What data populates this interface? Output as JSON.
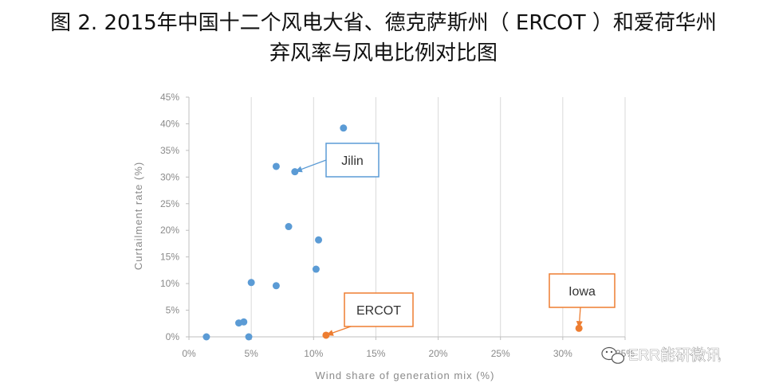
{
  "title": {
    "line1": "图 2. 2015年中国十二个风电大省、德克萨斯州（ ERCOT ）和爱荷华州",
    "line2": "弃风率与风电比例对比图"
  },
  "watermark": "ERR能研微讯",
  "colors": {
    "china": "#5b9bd5",
    "highlight": "#ed7d31",
    "grid": "#d9d9d9",
    "axis_text": "#8a8a8a"
  },
  "chart_data": {
    "type": "scatter",
    "xlabel": "Wind share of generation mix (%)",
    "ylabel": "Curtailment rate (%)",
    "xlim": [
      0,
      35
    ],
    "ylim": [
      0,
      45
    ],
    "x_ticks": [
      {
        "v": 0,
        "label": "0%"
      },
      {
        "v": 5,
        "label": "5%"
      },
      {
        "v": 10,
        "label": "10%"
      },
      {
        "v": 15,
        "label": "15%"
      },
      {
        "v": 20,
        "label": "20%"
      },
      {
        "v": 25,
        "label": "25%"
      },
      {
        "v": 30,
        "label": "30%"
      },
      {
        "v": 35,
        "label": "35%"
      }
    ],
    "y_ticks": [
      {
        "v": 0,
        "label": "0%"
      },
      {
        "v": 5,
        "label": "5%"
      },
      {
        "v": 10,
        "label": "10%"
      },
      {
        "v": 15,
        "label": "15%"
      },
      {
        "v": 20,
        "label": "20%"
      },
      {
        "v": 25,
        "label": "25%"
      },
      {
        "v": 30,
        "label": "30%"
      },
      {
        "v": 35,
        "label": "35%"
      },
      {
        "v": 40,
        "label": "40%"
      },
      {
        "v": 45,
        "label": "45%"
      }
    ],
    "grid": "vertical",
    "series": [
      {
        "color": "#5b9bd5",
        "points": [
          {
            "x": 1.4,
            "y": 0
          },
          {
            "x": 4.8,
            "y": 0
          },
          {
            "x": 4.0,
            "y": 2.6
          },
          {
            "x": 4.4,
            "y": 2.8
          },
          {
            "x": 5.0,
            "y": 10.2
          },
          {
            "x": 7.0,
            "y": 9.6
          },
          {
            "x": 7.0,
            "y": 32.0
          },
          {
            "x": 8.5,
            "y": 31.0
          },
          {
            "x": 8.0,
            "y": 20.7
          },
          {
            "x": 10.4,
            "y": 18.2
          },
          {
            "x": 10.2,
            "y": 12.7
          },
          {
            "x": 12.4,
            "y": 39.2
          }
        ]
      },
      {
        "color": "#ed7d31",
        "points": [
          {
            "x": 11.0,
            "y": 0.3
          },
          {
            "x": 31.3,
            "y": 1.6
          }
        ]
      }
    ],
    "annotations": [
      {
        "text": "Jilin",
        "style": "blue",
        "target": {
          "x": 8.5,
          "y": 31.0
        }
      },
      {
        "text": "ERCOT",
        "style": "orange",
        "target": {
          "x": 11.0,
          "y": 0.3
        }
      },
      {
        "text": "Iowa",
        "style": "orange",
        "target": {
          "x": 31.3,
          "y": 1.6
        }
      }
    ]
  }
}
